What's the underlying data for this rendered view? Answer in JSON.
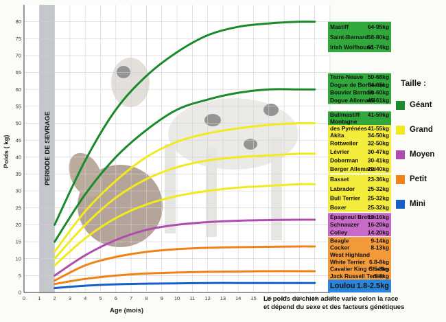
{
  "chart_data": {
    "type": "line",
    "xlabel": "Age (mois)",
    "ylabel": "Poids ( kg)",
    "xlim": [
      0,
      20
    ],
    "ylim": [
      0,
      85
    ],
    "x_ticks": [
      0,
      1,
      2,
      3,
      4,
      5,
      6,
      7,
      8,
      9,
      10,
      11,
      12,
      13,
      14,
      15,
      16,
      17,
      18,
      19,
      20
    ],
    "y_ticks": [
      0,
      5,
      10,
      15,
      20,
      25,
      30,
      35,
      40,
      45,
      50,
      55,
      60,
      65,
      70,
      75,
      80
    ],
    "weaning_band": {
      "label": "PERIODE DE SEVRAGE",
      "x_from": 1,
      "x_to": 2
    },
    "grid": true,
    "series": [
      {
        "size": "Géant",
        "color": "#1a8a2a",
        "x": [
          2,
          4,
          6,
          8,
          10,
          12,
          14,
          16,
          18,
          19
        ],
        "y": [
          20,
          39,
          54,
          64,
          71,
          76,
          78.5,
          79.5,
          80,
          80
        ]
      },
      {
        "size": "Géant",
        "color": "#1a8a2a",
        "x": [
          2,
          4,
          6,
          8,
          10,
          12,
          14,
          16,
          18,
          19
        ],
        "y": [
          15,
          29,
          40,
          48,
          54,
          57,
          59,
          60,
          60,
          60
        ]
      },
      {
        "size": "Grand",
        "color": "#f2ea1c",
        "x": [
          2,
          4,
          6,
          8,
          10,
          12,
          14,
          16,
          18,
          19
        ],
        "y": [
          12,
          24,
          33,
          40,
          44.5,
          47,
          48.5,
          49.5,
          50,
          50
        ]
      },
      {
        "size": "Grand",
        "color": "#f2ea1c",
        "x": [
          2,
          4,
          6,
          8,
          10,
          12,
          14,
          16,
          18,
          19
        ],
        "y": [
          10,
          20,
          28,
          33.5,
          37,
          39,
          40,
          40.5,
          41,
          41
        ]
      },
      {
        "size": "Grand",
        "color": "#f2ea1c",
        "x": [
          2,
          4,
          6,
          8,
          10,
          12,
          14,
          16,
          18,
          19
        ],
        "y": [
          8,
          16,
          22,
          26,
          28.5,
          30,
          31,
          31.5,
          32,
          32
        ]
      },
      {
        "size": "Moyen",
        "color": "#b04cb0",
        "x": [
          2,
          4,
          6,
          8,
          10,
          12,
          14,
          16,
          18,
          19
        ],
        "y": [
          5,
          11,
          15.5,
          18.5,
          20,
          20.8,
          21.2,
          21.4,
          21.5,
          21.5
        ]
      },
      {
        "size": "Petit",
        "color": "#ef8318",
        "x": [
          2,
          4,
          6,
          8,
          10,
          12,
          14,
          16,
          18,
          19
        ],
        "y": [
          3.5,
          8,
          10.5,
          12,
          12.8,
          13.2,
          13.4,
          13.5,
          13.6,
          13.6
        ]
      },
      {
        "size": "Petit",
        "color": "#ef8318",
        "x": [
          2,
          4,
          6,
          8,
          10,
          12,
          14,
          16,
          18,
          19
        ],
        "y": [
          2.5,
          4,
          5,
          5.6,
          5.9,
          6.1,
          6.2,
          6.3,
          6.3,
          6.3
        ]
      },
      {
        "size": "Mini",
        "color": "#1560c8",
        "x": [
          2,
          4,
          6,
          8,
          10,
          12,
          14,
          16,
          18,
          19
        ],
        "y": [
          1.3,
          2,
          2.4,
          2.6,
          2.7,
          2.8,
          2.8,
          2.8,
          2.8,
          2.8
        ]
      }
    ],
    "breed_panels": [
      {
        "color": "#31a83c",
        "y_top": 80,
        "y_bottom": 71,
        "rows": [
          {
            "name": "Mastiff",
            "range": "64-95kg"
          },
          {
            "name": "Saint-Bernard",
            "range": "58-80kg"
          },
          {
            "name": "Irish Wolfhound",
            "range": "61-74kg"
          }
        ]
      },
      {
        "color": "#31a83c",
        "y_top": 64.8,
        "y_bottom": 55.7,
        "rows": [
          {
            "name": "Terre-Neuve",
            "range": "50-68kg"
          },
          {
            "name": "Dogue de Bordeaux",
            "range": "54-65kg"
          },
          {
            "name": "Bouvier Bernois",
            "range": "50-60kg"
          },
          {
            "name": "Dogue Allemand",
            "range": "45-61kg"
          }
        ]
      },
      {
        "color": "#31a83c",
        "y_top": 53.5,
        "y_bottom": 49.5,
        "rows": [
          {
            "name": "Bullmastiff",
            "range": "41-59kg"
          },
          {
            "name": "Montagne",
            "range": ""
          }
        ]
      },
      {
        "color": "#f4ec3a",
        "y_top": 49.5,
        "y_bottom": 45.4,
        "rows": [
          {
            "name": "des Pyrénées",
            "range": "41-55kg"
          },
          {
            "name": "Akita",
            "range": "34-50kg"
          }
        ]
      },
      {
        "color": "#f4ec3a",
        "y_top": 45.4,
        "y_bottom": 35.2,
        "rows": [
          {
            "name": "Rottweiler",
            "range": "32-50kg"
          },
          {
            "name": "Lévrier",
            "range": "30-47kg"
          },
          {
            "name": "Doberman",
            "range": "30-41kg"
          },
          {
            "name": "Berger Allemand",
            "range": "29-40kg"
          }
        ]
      },
      {
        "color": "#f4ec3a",
        "y_top": 34.8,
        "y_bottom": 23.8,
        "rows": [
          {
            "name": "Basset",
            "range": "23-36kg"
          },
          {
            "name": "Labrador",
            "range": "25-32kg"
          },
          {
            "name": "Bull Terrier",
            "range": "25-32kg"
          },
          {
            "name": "Boxer",
            "range": "25-32kg"
          }
        ]
      },
      {
        "color": "#c86ac8",
        "y_top": 23.5,
        "y_bottom": 16.6,
        "rows": [
          {
            "name": "Épagneul Breton",
            "range": "13-16kg"
          },
          {
            "name": "Schnauzer",
            "range": "16-20kg"
          },
          {
            "name": "Colley",
            "range": "14-20kg"
          }
        ]
      },
      {
        "color": "#f29a3a",
        "y_top": 16.4,
        "y_bottom": 3.8,
        "rows": [
          {
            "name": "Beagle",
            "range": "9-14kg"
          },
          {
            "name": "Cocker",
            "range": "8-13kg"
          },
          {
            "name": "West Highland",
            "range": ""
          },
          {
            "name": "White Terrier",
            "range": "6.8-8kg"
          },
          {
            "name": "Cavalier King Charles",
            "range": "5.5-8kg"
          },
          {
            "name": "Jack Russell Terrier",
            "range": "5-8kg"
          }
        ]
      },
      {
        "color": "#2b85d8",
        "y_top": 3.8,
        "y_bottom": 0,
        "big": true,
        "rows": [
          {
            "name": "Loulou",
            "range": "1.8-2.5kg"
          }
        ]
      }
    ]
  },
  "legend": {
    "title": "Taille :",
    "items": [
      {
        "label": "Géant",
        "color": "#1a8a2a"
      },
      {
        "label": "Grand",
        "color": "#f2ea1c"
      },
      {
        "label": "Moyen",
        "color": "#b04cb0"
      },
      {
        "label": "Petit",
        "color": "#ef8318"
      },
      {
        "label": "Mini",
        "color": "#1560c8"
      }
    ]
  },
  "caption": {
    "line1": "Le poids du chien adulte varie selon la race",
    "line2": "et dépend du sexe et des facteurs génétiques"
  }
}
